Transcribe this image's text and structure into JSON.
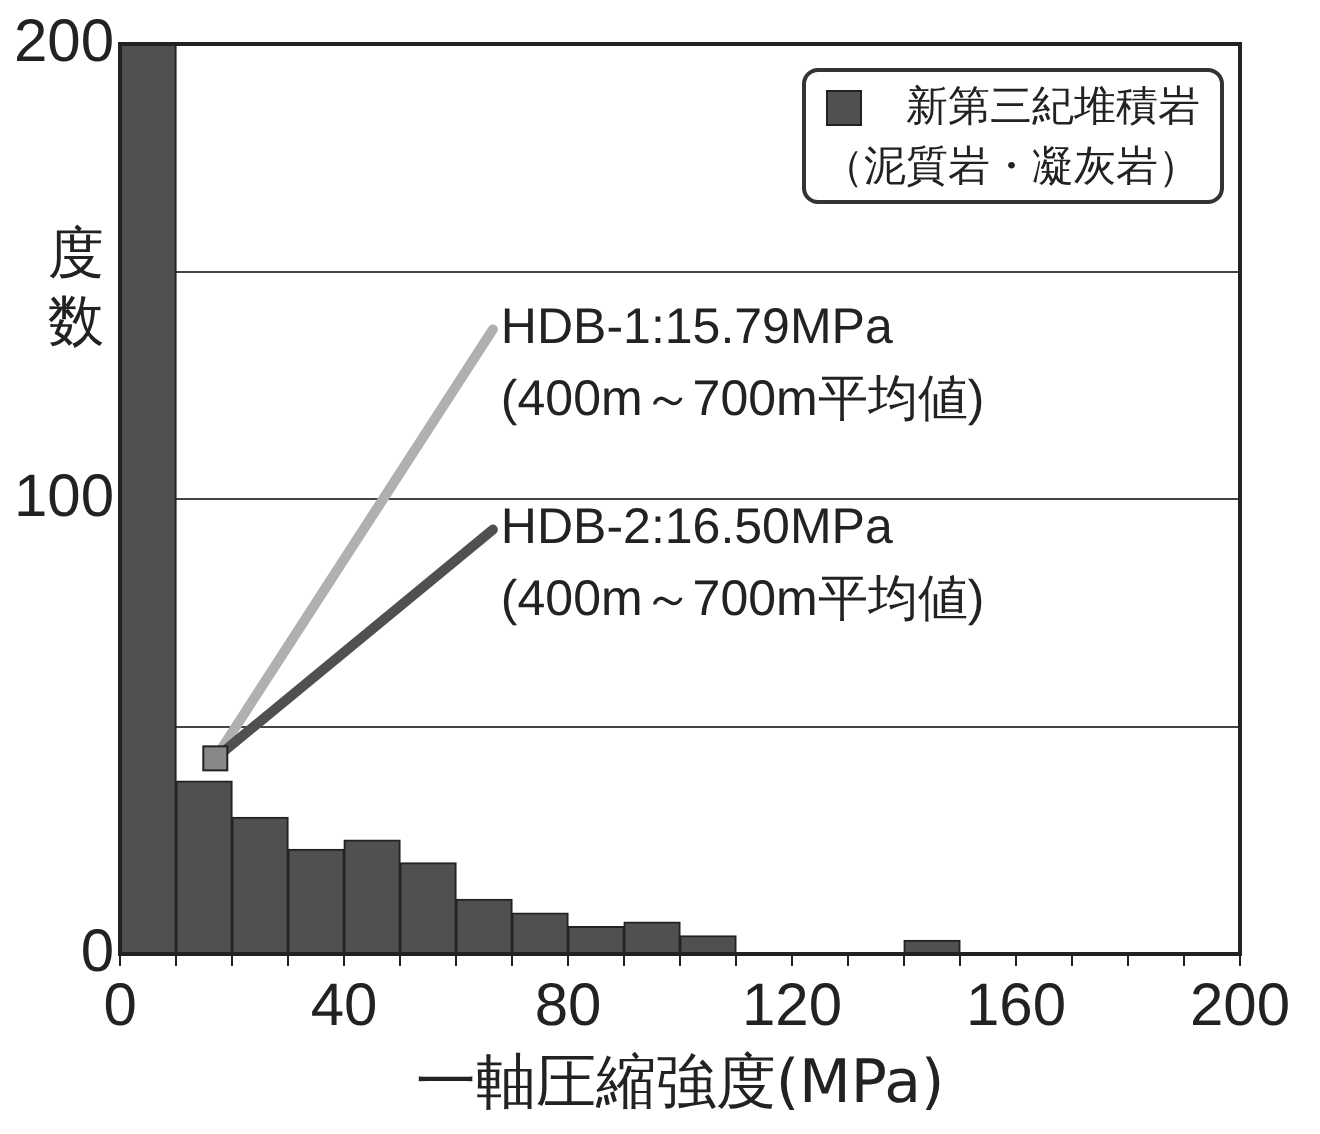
{
  "chart_data": {
    "type": "histogram",
    "xlabel": "一軸圧縮強度(MPa)",
    "ylabel": "度数",
    "bins": [
      0,
      10,
      20,
      30,
      40,
      50,
      60,
      70,
      80,
      90,
      100,
      110,
      120,
      130,
      140,
      150,
      160,
      170,
      180,
      190,
      200
    ],
    "series": [
      {
        "name": "新第三紀堆積岩（泥質岩・凝灰岩）",
        "color": "#505050",
        "values": [
          200,
          38,
          30,
          23,
          25,
          20,
          12,
          9,
          6,
          7,
          4,
          0,
          0,
          0,
          3,
          0,
          0,
          0,
          0,
          0
        ]
      }
    ],
    "xlim": [
      0,
      200
    ],
    "ylim": [
      0,
      200
    ],
    "xticks": [
      0,
      {
        "value": 10,
        "label": null
      },
      {
        "value": 20,
        "label": null
      },
      {
        "value": 30,
        "label": null
      },
      40,
      {
        "value": 50,
        "label": null
      },
      {
        "value": 60,
        "label": null
      },
      {
        "value": 70,
        "label": null
      },
      80,
      {
        "value": 90,
        "label": null
      },
      {
        "value": 100,
        "label": null
      },
      {
        "value": 110,
        "label": null
      },
      120,
      {
        "value": 130,
        "label": null
      },
      {
        "value": 140,
        "label": null
      },
      {
        "value": 150,
        "label": null
      },
      160,
      {
        "value": 170,
        "label": null
      },
      {
        "value": 180,
        "label": null
      },
      {
        "value": 190,
        "label": null
      },
      200
    ],
    "yticks": [
      0,
      {
        "value": 50,
        "label": null
      },
      100,
      {
        "value": 150,
        "label": null
      },
      200
    ],
    "grid": "y",
    "legend": "top right",
    "annotations": [
      "HDB-1:15.79MPa\n(400m～700m平均値)",
      "HDB-2:16.50MPa\n(400m～700m平均値)"
    ]
  }
}
